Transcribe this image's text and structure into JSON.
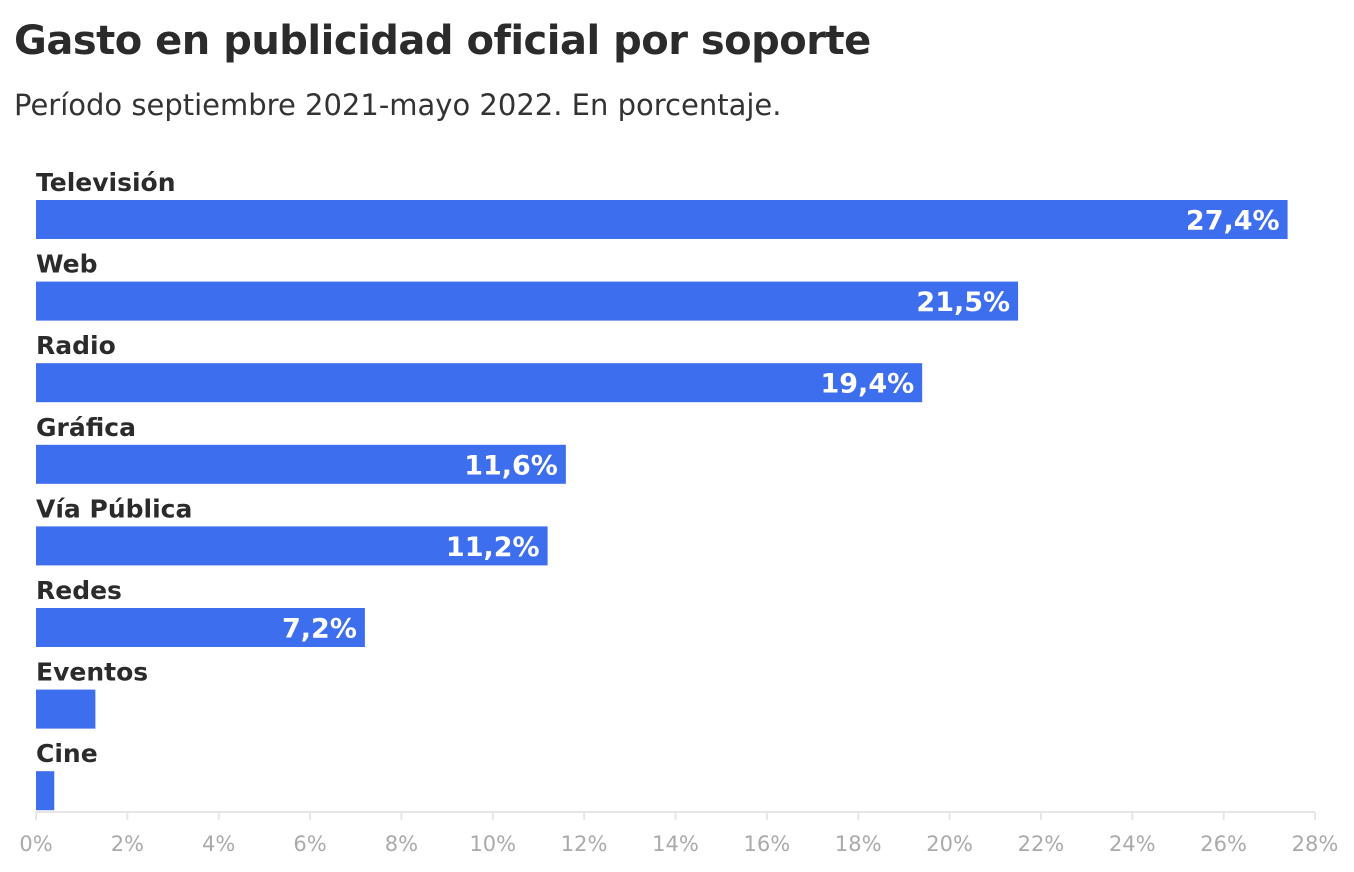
{
  "header": {
    "title": "Gasto en publicidad oficial por soporte",
    "subtitle": "Período septiembre 2021-mayo 2022. En porcentaje."
  },
  "colors": {
    "bar": "#3d6eee",
    "axis": "#e6e6e6",
    "tick_text": "#aaaaaa"
  },
  "chart_data": {
    "type": "bar",
    "orientation": "horizontal",
    "title": "Gasto en publicidad oficial por soporte",
    "subtitle": "Período septiembre 2021-mayo 2022. En porcentaje.",
    "categories": [
      "Televisión",
      "Web",
      "Radio",
      "Gráfica",
      "Vía Pública",
      "Redes",
      "Eventos",
      "Cine"
    ],
    "values": [
      27.4,
      21.5,
      19.4,
      11.6,
      11.2,
      7.2,
      1.3,
      0.4
    ],
    "data_labels": [
      "27,4%",
      "21,5%",
      "19,4%",
      "11,6%",
      "11,2%",
      "7,2%",
      "",
      ""
    ],
    "xlim": [
      0,
      28
    ],
    "x_ticks": [
      0,
      2,
      4,
      6,
      8,
      10,
      12,
      14,
      16,
      18,
      20,
      22,
      24,
      26,
      28
    ],
    "x_tick_labels": [
      "0%",
      "2%",
      "4%",
      "6%",
      "8%",
      "10%",
      "12%",
      "14%",
      "16%",
      "18%",
      "20%",
      "22%",
      "24%",
      "26%",
      "28%"
    ],
    "grid": false,
    "legend": "none"
  }
}
